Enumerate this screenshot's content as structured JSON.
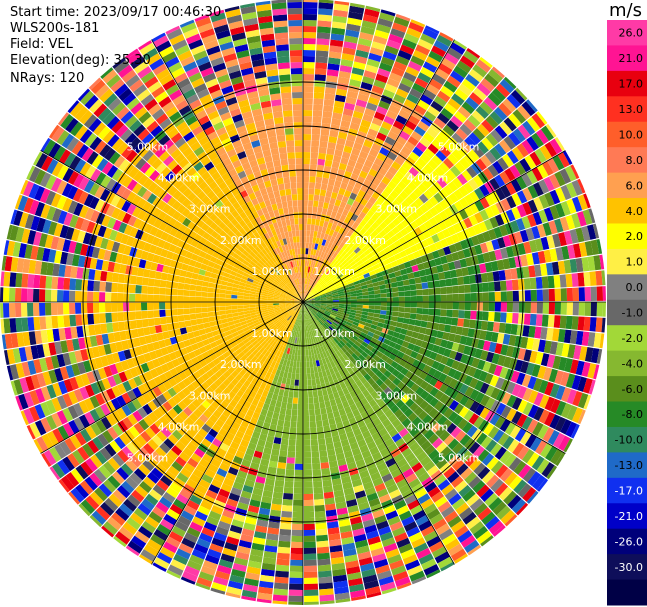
{
  "info": {
    "start_time": "Start time: 2023/09/17 00:46:30",
    "device": "WLS200s-181",
    "field": "Field: VEL",
    "elevation": "Elevation(deg): 35.30",
    "nrays": "NRays: 120"
  },
  "chart_data": {
    "type": "heatmap",
    "projection": "polar-ppi",
    "title": "",
    "range_unit": "km",
    "range_ring_km": [
      1.0,
      2.0,
      3.0,
      4.0,
      5.0
    ],
    "range_ring_labels": [
      "1.00km",
      "2.00km",
      "3.00km",
      "4.00km",
      "5.00km"
    ],
    "max_range_km": 5.0,
    "n_rays": 120,
    "colorbar": {
      "unit": "m/s",
      "tick_labels": [
        "26.0",
        "21.0",
        "17.0",
        "13.0",
        "10.0",
        "8.0",
        "6.0",
        "4.0",
        "2.0",
        "1.0",
        "0.0",
        "-1.0",
        "-2.0",
        "-4.0",
        "-6.0",
        "-8.0",
        "-10.0",
        "-13.0",
        "-17.0",
        "-21.0",
        "-26.0",
        "-30.0"
      ],
      "colors": [
        "#ff3aa6",
        "#ff1493",
        "#e8000f",
        "#ff3020",
        "#ff5e2a",
        "#ff7a55",
        "#ffa050",
        "#ffc200",
        "#ffff00",
        "#ffef45",
        "#808080",
        "#686868",
        "#a2d838",
        "#86b830",
        "#5a8e1c",
        "#268a26",
        "#2f8a5e",
        "#1f6ac8",
        "#1030f0",
        "#0000c8",
        "#00007a",
        "#0e0e5a",
        "#000046"
      ]
    },
    "pattern_description": "",
    "sectors": [
      {
        "az_from": 200,
        "az_to": 330,
        "value": 5.0
      },
      {
        "az_from": 330,
        "az_to": 35,
        "value": 6.5
      },
      {
        "az_from": 35,
        "az_to": 70,
        "value": 3.0
      },
      {
        "az_from": 70,
        "az_to": 140,
        "value": -6.0
      },
      {
        "az_from": 140,
        "az_to": 200,
        "value": -3.0
      }
    ]
  }
}
